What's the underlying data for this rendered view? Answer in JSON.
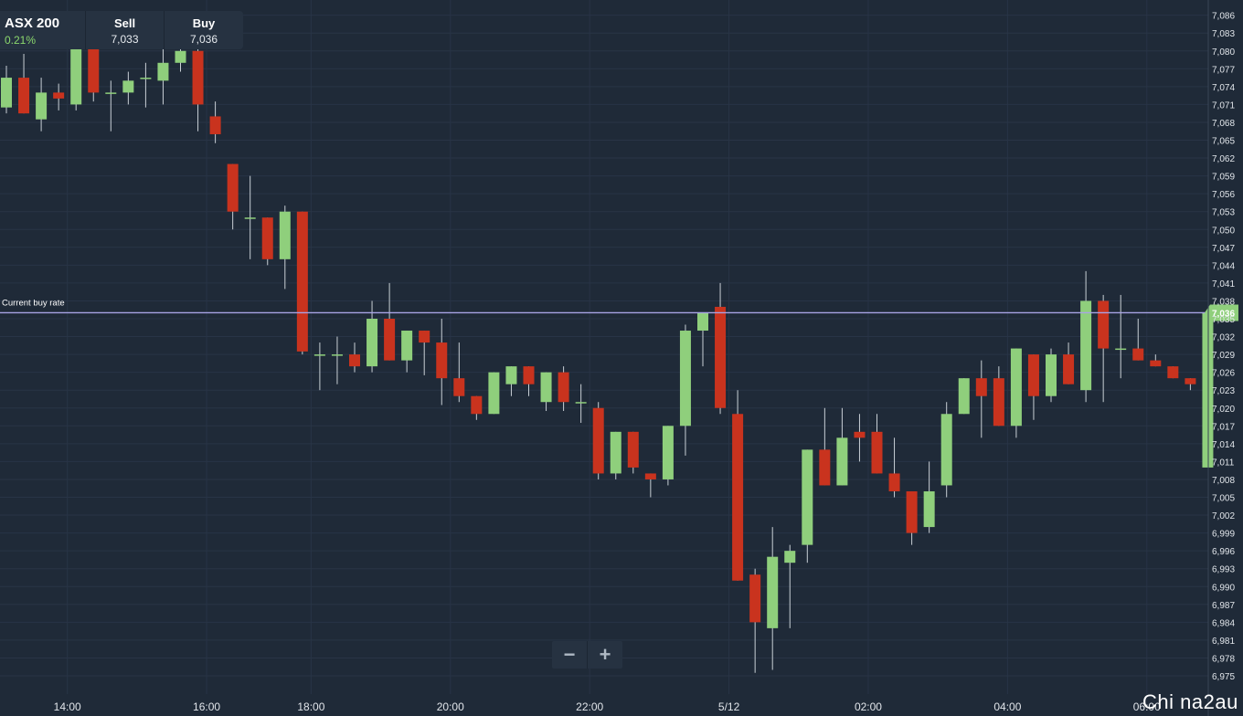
{
  "instrument": {
    "name": "ASX 200",
    "change": "0.21%",
    "sell_label": "Sell",
    "sell_value": "7,033",
    "buy_label": "Buy",
    "buy_value": "7,036"
  },
  "current_rate": {
    "label": "Current buy rate",
    "value": 7036,
    "display": "7,036"
  },
  "zoom": {
    "out": "−",
    "in": "+"
  },
  "watermark": "Chi na2au",
  "colors": {
    "background": "#1f2a38",
    "up": "#8fcf7c",
    "down": "#c9331e",
    "current_line": "#a9a4e6",
    "grid": "#283446",
    "axis_text": "#e1e5ea"
  },
  "chart_data": {
    "type": "candlestick",
    "ylim": [
      6973,
      7087
    ],
    "yticks": [
      6975,
      6978,
      6981,
      6984,
      6987,
      6990,
      6993,
      6996,
      6999,
      7002,
      7005,
      7008,
      7011,
      7014,
      7017,
      7020,
      7023,
      7026,
      7029,
      7032,
      7035,
      7038,
      7041,
      7044,
      7047,
      7050,
      7053,
      7056,
      7059,
      7062,
      7065,
      7068,
      7071,
      7074,
      7077,
      7080,
      7083,
      7086
    ],
    "x_ticks": [
      {
        "label": "14:00",
        "slot": 3.5
      },
      {
        "label": "16:00",
        "slot": 11.5
      },
      {
        "label": "18:00",
        "slot": 17.5
      },
      {
        "label": "20:00",
        "slot": 25.5
      },
      {
        "label": "22:00",
        "slot": 33.5
      },
      {
        "label": "5/12",
        "slot": 41.5
      },
      {
        "label": "02:00",
        "slot": 49.5
      },
      {
        "label": "04:00",
        "slot": 57.5
      },
      {
        "label": "06:00",
        "slot": 65.5
      }
    ],
    "candles": [
      {
        "o": 7070.5,
        "h": 7077.5,
        "l": 7069.5,
        "c": 7075.5
      },
      {
        "o": 7075.5,
        "h": 7079.5,
        "l": 7069.5,
        "c": 7069.5
      },
      {
        "o": 7068.5,
        "h": 7075.5,
        "l": 7066.5,
        "c": 7073
      },
      {
        "o": 7073,
        "h": 7074.5,
        "l": 7070,
        "c": 7072
      },
      {
        "o": 7071,
        "h": 7082,
        "l": 7070,
        "c": 7081
      },
      {
        "o": 7081,
        "h": 7082,
        "l": 7071.5,
        "c": 7073
      },
      {
        "o": 7073,
        "h": 7075,
        "l": 7066.5,
        "c": 7073
      },
      {
        "o": 7073,
        "h": 7076.5,
        "l": 7071,
        "c": 7075
      },
      {
        "o": 7075.5,
        "h": 7078,
        "l": 7070.5,
        "c": 7075.5
      },
      {
        "o": 7075,
        "h": 7081,
        "l": 7071,
        "c": 7078
      },
      {
        "o": 7078,
        "h": 7082,
        "l": 7076.5,
        "c": 7080
      },
      {
        "o": 7080,
        "h": 7081,
        "l": 7066.5,
        "c": 7071
      },
      {
        "o": 7069,
        "h": 7071.5,
        "l": 7064.5,
        "c": 7066
      },
      {
        "o": 7061,
        "h": 7061,
        "l": 7050,
        "c": 7053
      },
      {
        "o": 7052,
        "h": 7059,
        "l": 7045,
        "c": 7052
      },
      {
        "o": 7052,
        "h": 7052,
        "l": 7044,
        "c": 7045
      },
      {
        "o": 7045,
        "h": 7054,
        "l": 7040,
        "c": 7053
      },
      {
        "o": 7053,
        "h": 7053,
        "l": 7029,
        "c": 7029.5
      },
      {
        "o": 7029,
        "h": 7031,
        "l": 7023,
        "c": 7029
      },
      {
        "o": 7029,
        "h": 7032,
        "l": 7024,
        "c": 7029
      },
      {
        "o": 7029,
        "h": 7031,
        "l": 7026,
        "c": 7027
      },
      {
        "o": 7027,
        "h": 7038,
        "l": 7026,
        "c": 7035
      },
      {
        "o": 7035,
        "h": 7041,
        "l": 7028,
        "c": 7028
      },
      {
        "o": 7028,
        "h": 7033,
        "l": 7026,
        "c": 7033
      },
      {
        "o": 7033,
        "h": 7033,
        "l": 7025.5,
        "c": 7031
      },
      {
        "o": 7031,
        "h": 7035,
        "l": 7020.5,
        "c": 7025
      },
      {
        "o": 7025,
        "h": 7031,
        "l": 7021,
        "c": 7022
      },
      {
        "o": 7022,
        "h": 7022,
        "l": 7018,
        "c": 7019
      },
      {
        "o": 7019,
        "h": 7026,
        "l": 7019,
        "c": 7026
      },
      {
        "o": 7024,
        "h": 7027,
        "l": 7022,
        "c": 7027
      },
      {
        "o": 7027,
        "h": 7027,
        "l": 7022,
        "c": 7024
      },
      {
        "o": 7021,
        "h": 7026,
        "l": 7019.5,
        "c": 7026
      },
      {
        "o": 7026,
        "h": 7027,
        "l": 7019.5,
        "c": 7021
      },
      {
        "o": 7021,
        "h": 7024,
        "l": 7017.5,
        "c": 7021
      },
      {
        "o": 7020,
        "h": 7021,
        "l": 7008,
        "c": 7009
      },
      {
        "o": 7009,
        "h": 7016,
        "l": 7008,
        "c": 7016
      },
      {
        "o": 7016,
        "h": 7016,
        "l": 7009,
        "c": 7010
      },
      {
        "o": 7009,
        "h": 7009,
        "l": 7005,
        "c": 7008
      },
      {
        "o": 7008,
        "h": 7017,
        "l": 7007,
        "c": 7017
      },
      {
        "o": 7017,
        "h": 7034,
        "l": 7012,
        "c": 7033
      },
      {
        "o": 7033,
        "h": 7036,
        "l": 7027,
        "c": 7036
      },
      {
        "o": 7037,
        "h": 7041,
        "l": 7019,
        "c": 7020
      },
      {
        "o": 7019,
        "h": 7023,
        "l": 6991,
        "c": 6991
      },
      {
        "o": 6992,
        "h": 6993,
        "l": 6975.5,
        "c": 6984
      },
      {
        "o": 6983,
        "h": 7000,
        "l": 6976,
        "c": 6995
      },
      {
        "o": 6994,
        "h": 6997,
        "l": 6983,
        "c": 6996
      },
      {
        "o": 6997,
        "h": 7013,
        "l": 6994,
        "c": 7013
      },
      {
        "o": 7013,
        "h": 7020,
        "l": 7007,
        "c": 7007
      },
      {
        "o": 7007,
        "h": 7020,
        "l": 7007,
        "c": 7015
      },
      {
        "o": 7016,
        "h": 7019,
        "l": 7011,
        "c": 7015
      },
      {
        "o": 7016,
        "h": 7019,
        "l": 7009,
        "c": 7009
      },
      {
        "o": 7009,
        "h": 7015,
        "l": 7005,
        "c": 7006
      },
      {
        "o": 7006,
        "h": 7006,
        "l": 6997,
        "c": 6999
      },
      {
        "o": 7000,
        "h": 7011,
        "l": 6999,
        "c": 7006
      },
      {
        "o": 7007,
        "h": 7021,
        "l": 7005,
        "c": 7019
      },
      {
        "o": 7019,
        "h": 7025,
        "l": 7019,
        "c": 7025
      },
      {
        "o": 7025,
        "h": 7028,
        "l": 7015,
        "c": 7022
      },
      {
        "o": 7025,
        "h": 7027,
        "l": 7017,
        "c": 7017
      },
      {
        "o": 7017,
        "h": 7030,
        "l": 7015,
        "c": 7030
      },
      {
        "o": 7029,
        "h": 7029,
        "l": 7018,
        "c": 7022
      },
      {
        "o": 7022,
        "h": 7030,
        "l": 7021,
        "c": 7029
      },
      {
        "o": 7029,
        "h": 7031,
        "l": 7024,
        "c": 7024
      },
      {
        "o": 7023,
        "h": 7043,
        "l": 7021,
        "c": 7038
      },
      {
        "o": 7038,
        "h": 7039,
        "l": 7021,
        "c": 7030
      },
      {
        "o": 7030,
        "h": 7039,
        "l": 7025,
        "c": 7030
      },
      {
        "o": 7030,
        "h": 7035,
        "l": 7028,
        "c": 7028
      },
      {
        "o": 7028,
        "h": 7029,
        "l": 7027,
        "c": 7027
      },
      {
        "o": 7027,
        "h": 7027,
        "l": 7025,
        "c": 7025
      },
      {
        "o": 7025,
        "h": 7025,
        "l": 7023,
        "c": 7024
      },
      {
        "o": 7010,
        "h": 7036,
        "l": 7010,
        "c": 7036
      }
    ]
  }
}
